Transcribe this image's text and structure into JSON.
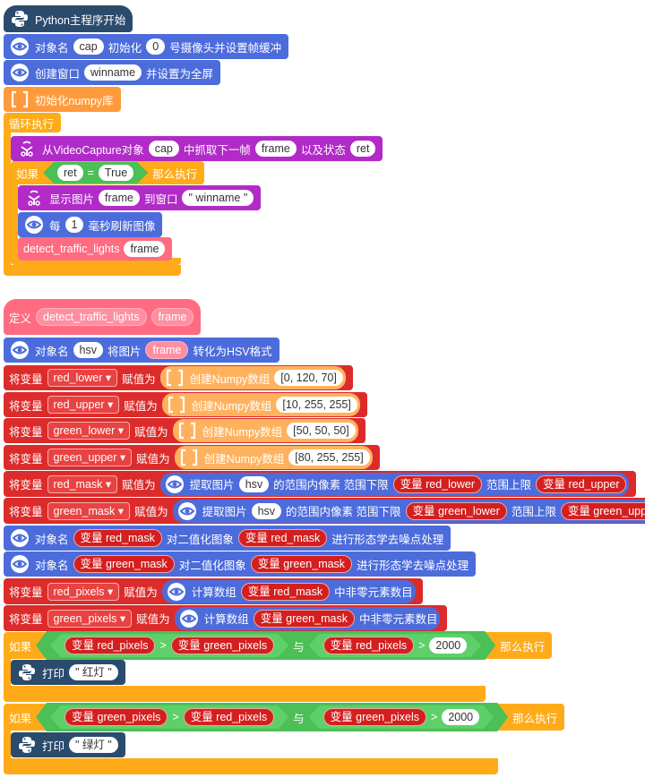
{
  "blocks": [
    {
      "parts": [
        "Python主程序开始"
      ]
    },
    {
      "parts": [
        "对象名",
        "cap",
        "初始化",
        "0",
        "号摄像头并设置帧缓冲"
      ]
    },
    {
      "parts": [
        "创建窗口",
        "winname",
        "并设置为全屏"
      ]
    },
    {
      "parts": [
        "初始化numpy库"
      ]
    },
    {
      "parts": [
        "循环执行"
      ]
    },
    {
      "parts": [
        "从VideoCapture对象",
        "cap",
        "中抓取下一帧",
        "frame",
        "以及状态",
        "ret"
      ]
    },
    {
      "parts": [
        "如果",
        "ret",
        "=",
        "True",
        "那么执行"
      ]
    },
    {
      "parts": [
        "显示图片",
        "frame",
        "到窗口",
        "\" winname \""
      ]
    },
    {
      "parts": [
        "每",
        "1",
        "毫秒刷新图像"
      ]
    },
    {
      "parts": [
        "detect_traffic_lights",
        "frame"
      ]
    },
    {
      "parts": [
        "定义",
        "detect_traffic_lights",
        "frame"
      ]
    },
    {
      "parts": [
        "对象名",
        "hsv",
        "将图片",
        "frame",
        "转化为HSV格式"
      ]
    },
    {
      "parts": [
        "将变量",
        "red_lower ▾",
        "赋值为",
        "创建Numpy数组",
        "[0, 120, 70]"
      ]
    },
    {
      "parts": [
        "将变量",
        "red_upper ▾",
        "赋值为",
        "创建Numpy数组",
        "[10, 255, 255]"
      ]
    },
    {
      "parts": [
        "将变量",
        "green_lower ▾",
        "赋值为",
        "创建Numpy数组",
        "[50, 50, 50]"
      ]
    },
    {
      "parts": [
        "将变量",
        "green_upper ▾",
        "赋值为",
        "创建Numpy数组",
        "[80, 255, 255]"
      ]
    },
    {
      "parts": [
        "将变量",
        "red_mask ▾",
        "赋值为",
        "提取图片",
        "hsv",
        "的范围内像素 范围下限",
        "变量 red_lower",
        "范围上限",
        "变量 red_upper"
      ]
    },
    {
      "parts": [
        "将变量",
        "green_mask ▾",
        "赋值为",
        "提取图片",
        "hsv",
        "的范围内像素 范围下限",
        "变量 green_lower",
        "范围上限",
        "变量 green_upper"
      ]
    },
    {
      "parts": [
        "对象名",
        "变量 red_mask",
        "对二值化图象",
        "变量 red_mask",
        "进行形态学去噪点处理"
      ]
    },
    {
      "parts": [
        "对象名",
        "变量 green_mask",
        "对二值化图象",
        "变量 green_mask",
        "进行形态学去噪点处理"
      ]
    },
    {
      "parts": [
        "将变量",
        "red_pixels ▾",
        "赋值为",
        "计算数组",
        "变量 red_mask",
        "中非零元素数目"
      ]
    },
    {
      "parts": [
        "将变量",
        "green_pixels ▾",
        "赋值为",
        "计算数组",
        "变量 green_mask",
        "中非零元素数目"
      ]
    },
    {
      "parts": [
        "如果",
        "变量 red_pixels",
        ">",
        "变量 green_pixels",
        "与",
        "变量 red_pixels",
        ">",
        "2000",
        "那么执行"
      ]
    },
    {
      "parts": [
        "打印",
        "\" 红灯 \""
      ]
    },
    {
      "parts": [
        "如果",
        "变量 green_pixels",
        ">",
        "变量 red_pixels",
        "与",
        "变量 green_pixels",
        ">",
        "2000",
        "那么执行"
      ]
    },
    {
      "parts": [
        "打印",
        "\" 绿灯 \""
      ]
    }
  ]
}
